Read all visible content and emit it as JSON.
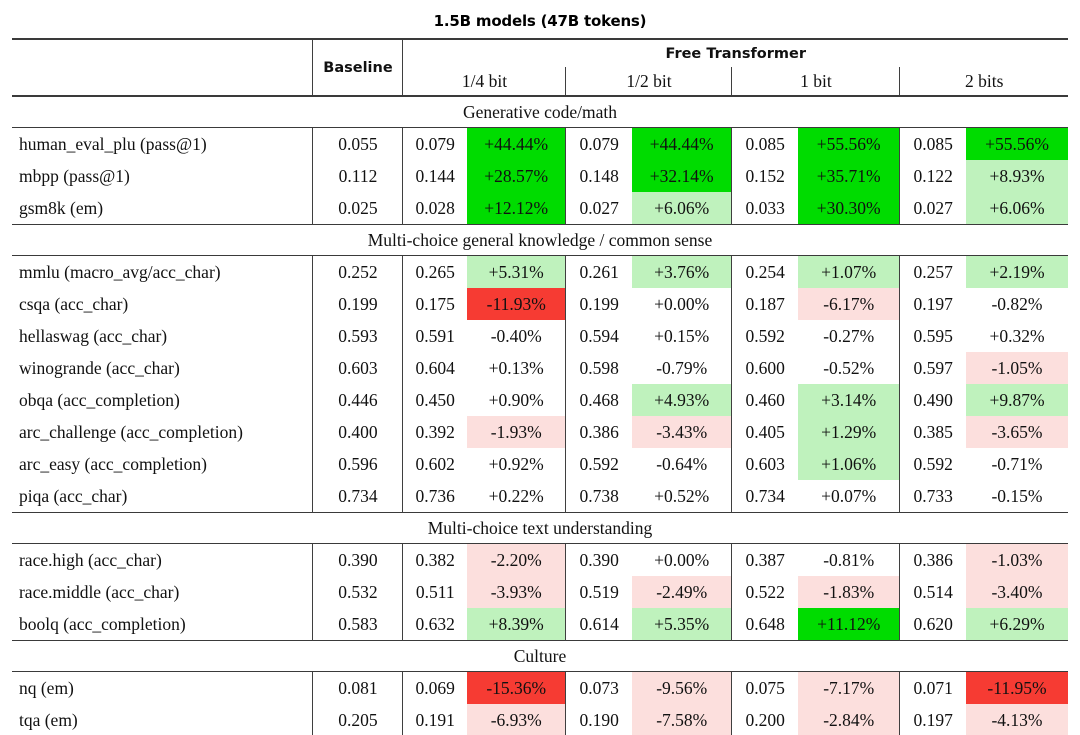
{
  "title": "1.5B models (47B tokens)",
  "table": {
    "header": {
      "baseline": "Baseline",
      "group": "Free Transformer",
      "subcols": [
        "1/4 bit",
        "1/2 bit",
        "1 bit",
        "2 bits"
      ]
    },
    "colors": {
      "g2": "#00dc00",
      "g1": "#bff2bd",
      "r1": "#fcdfdd",
      "r2": "#f63b33",
      "n": "transparent"
    },
    "sections": [
      {
        "label": "Generative code/math",
        "rows": [
          {
            "name": "human_eval_plu (pass@1)",
            "baseline": "0.055",
            "cells": [
              {
                "v": "0.079",
                "p": "+44.44%",
                "c": "g2"
              },
              {
                "v": "0.079",
                "p": "+44.44%",
                "c": "g2"
              },
              {
                "v": "0.085",
                "p": "+55.56%",
                "c": "g2"
              },
              {
                "v": "0.085",
                "p": "+55.56%",
                "c": "g2"
              }
            ]
          },
          {
            "name": "mbpp (pass@1)",
            "baseline": "0.112",
            "cells": [
              {
                "v": "0.144",
                "p": "+28.57%",
                "c": "g2"
              },
              {
                "v": "0.148",
                "p": "+32.14%",
                "c": "g2"
              },
              {
                "v": "0.152",
                "p": "+35.71%",
                "c": "g2"
              },
              {
                "v": "0.122",
                "p": "+8.93%",
                "c": "g1"
              }
            ]
          },
          {
            "name": "gsm8k (em)",
            "baseline": "0.025",
            "cells": [
              {
                "v": "0.028",
                "p": "+12.12%",
                "c": "g2"
              },
              {
                "v": "0.027",
                "p": "+6.06%",
                "c": "g1"
              },
              {
                "v": "0.033",
                "p": "+30.30%",
                "c": "g2"
              },
              {
                "v": "0.027",
                "p": "+6.06%",
                "c": "g1"
              }
            ]
          }
        ]
      },
      {
        "label": "Multi-choice general knowledge / common sense",
        "rows": [
          {
            "name": "mmlu (macro_avg/acc_char)",
            "baseline": "0.252",
            "cells": [
              {
                "v": "0.265",
                "p": "+5.31%",
                "c": "g1"
              },
              {
                "v": "0.261",
                "p": "+3.76%",
                "c": "g1"
              },
              {
                "v": "0.254",
                "p": "+1.07%",
                "c": "g1"
              },
              {
                "v": "0.257",
                "p": "+2.19%",
                "c": "g1"
              }
            ]
          },
          {
            "name": "csqa (acc_char)",
            "baseline": "0.199",
            "cells": [
              {
                "v": "0.175",
                "p": "-11.93%",
                "c": "r2"
              },
              {
                "v": "0.199",
                "p": "+0.00%",
                "c": "n"
              },
              {
                "v": "0.187",
                "p": "-6.17%",
                "c": "r1"
              },
              {
                "v": "0.197",
                "p": "-0.82%",
                "c": "n"
              }
            ]
          },
          {
            "name": "hellaswag (acc_char)",
            "baseline": "0.593",
            "cells": [
              {
                "v": "0.591",
                "p": "-0.40%",
                "c": "n"
              },
              {
                "v": "0.594",
                "p": "+0.15%",
                "c": "n"
              },
              {
                "v": "0.592",
                "p": "-0.27%",
                "c": "n"
              },
              {
                "v": "0.595",
                "p": "+0.32%",
                "c": "n"
              }
            ]
          },
          {
            "name": "winogrande (acc_char)",
            "baseline": "0.603",
            "cells": [
              {
                "v": "0.604",
                "p": "+0.13%",
                "c": "n"
              },
              {
                "v": "0.598",
                "p": "-0.79%",
                "c": "n"
              },
              {
                "v": "0.600",
                "p": "-0.52%",
                "c": "n"
              },
              {
                "v": "0.597",
                "p": "-1.05%",
                "c": "r1"
              }
            ]
          },
          {
            "name": "obqa (acc_completion)",
            "baseline": "0.446",
            "cells": [
              {
                "v": "0.450",
                "p": "+0.90%",
                "c": "n"
              },
              {
                "v": "0.468",
                "p": "+4.93%",
                "c": "g1"
              },
              {
                "v": "0.460",
                "p": "+3.14%",
                "c": "g1"
              },
              {
                "v": "0.490",
                "p": "+9.87%",
                "c": "g1"
              }
            ]
          },
          {
            "name": "arc_challenge (acc_completion)",
            "baseline": "0.400",
            "cells": [
              {
                "v": "0.392",
                "p": "-1.93%",
                "c": "r1"
              },
              {
                "v": "0.386",
                "p": "-3.43%",
                "c": "r1"
              },
              {
                "v": "0.405",
                "p": "+1.29%",
                "c": "g1"
              },
              {
                "v": "0.385",
                "p": "-3.65%",
                "c": "r1"
              }
            ]
          },
          {
            "name": "arc_easy (acc_completion)",
            "baseline": "0.596",
            "cells": [
              {
                "v": "0.602",
                "p": "+0.92%",
                "c": "n"
              },
              {
                "v": "0.592",
                "p": "-0.64%",
                "c": "n"
              },
              {
                "v": "0.603",
                "p": "+1.06%",
                "c": "g1"
              },
              {
                "v": "0.592",
                "p": "-0.71%",
                "c": "n"
              }
            ]
          },
          {
            "name": "piqa (acc_char)",
            "baseline": "0.734",
            "cells": [
              {
                "v": "0.736",
                "p": "+0.22%",
                "c": "n"
              },
              {
                "v": "0.738",
                "p": "+0.52%",
                "c": "n"
              },
              {
                "v": "0.734",
                "p": "+0.07%",
                "c": "n"
              },
              {
                "v": "0.733",
                "p": "-0.15%",
                "c": "n"
              }
            ]
          }
        ]
      },
      {
        "label": "Multi-choice text understanding",
        "rows": [
          {
            "name": "race.high (acc_char)",
            "baseline": "0.390",
            "cells": [
              {
                "v": "0.382",
                "p": "-2.20%",
                "c": "r1"
              },
              {
                "v": "0.390",
                "p": "+0.00%",
                "c": "n"
              },
              {
                "v": "0.387",
                "p": "-0.81%",
                "c": "n"
              },
              {
                "v": "0.386",
                "p": "-1.03%",
                "c": "r1"
              }
            ]
          },
          {
            "name": "race.middle (acc_char)",
            "baseline": "0.532",
            "cells": [
              {
                "v": "0.511",
                "p": "-3.93%",
                "c": "r1"
              },
              {
                "v": "0.519",
                "p": "-2.49%",
                "c": "r1"
              },
              {
                "v": "0.522",
                "p": "-1.83%",
                "c": "r1"
              },
              {
                "v": "0.514",
                "p": "-3.40%",
                "c": "r1"
              }
            ]
          },
          {
            "name": "boolq (acc_completion)",
            "baseline": "0.583",
            "cells": [
              {
                "v": "0.632",
                "p": "+8.39%",
                "c": "g1"
              },
              {
                "v": "0.614",
                "p": "+5.35%",
                "c": "g1"
              },
              {
                "v": "0.648",
                "p": "+11.12%",
                "c": "g2"
              },
              {
                "v": "0.620",
                "p": "+6.29%",
                "c": "g1"
              }
            ]
          }
        ]
      },
      {
        "label": "Culture",
        "rows": [
          {
            "name": "nq (em)",
            "baseline": "0.081",
            "cells": [
              {
                "v": "0.069",
                "p": "-15.36%",
                "c": "r2"
              },
              {
                "v": "0.073",
                "p": "-9.56%",
                "c": "r1"
              },
              {
                "v": "0.075",
                "p": "-7.17%",
                "c": "r1"
              },
              {
                "v": "0.071",
                "p": "-11.95%",
                "c": "r2"
              }
            ]
          },
          {
            "name": "tqa (em)",
            "baseline": "0.205",
            "cells": [
              {
                "v": "0.191",
                "p": "-6.93%",
                "c": "r1"
              },
              {
                "v": "0.190",
                "p": "-7.58%",
                "c": "r1"
              },
              {
                "v": "0.200",
                "p": "-2.84%",
                "c": "r1"
              },
              {
                "v": "0.197",
                "p": "-4.13%",
                "c": "r1"
              }
            ]
          }
        ]
      }
    ]
  }
}
